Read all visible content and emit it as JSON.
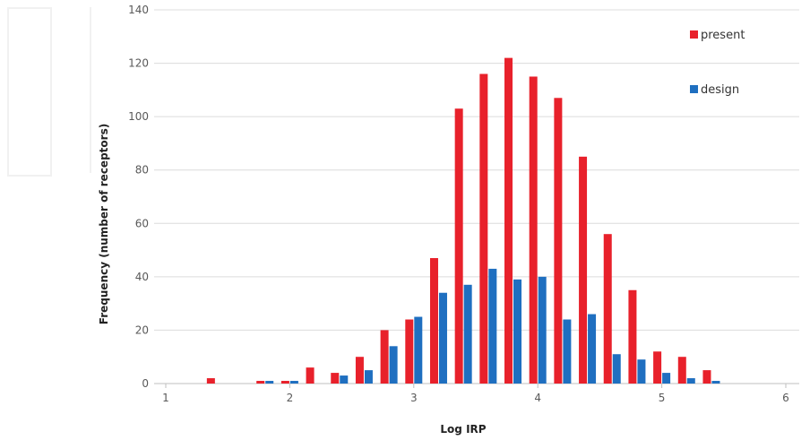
{
  "chart_data": {
    "type": "bar",
    "title": "",
    "xlabel": "Log IRP",
    "ylabel": "Frequency (number of receptors)",
    "ylim": [
      0,
      140
    ],
    "yticks": [
      0,
      20,
      40,
      60,
      80,
      100,
      120,
      140
    ],
    "xlim": [
      1,
      6
    ],
    "xticks": [
      1,
      2,
      3,
      4,
      5,
      6
    ],
    "grid": "horizontal",
    "legend_position": "top-right",
    "x": [
      1.4,
      1.8,
      2.0,
      2.2,
      2.4,
      2.6,
      2.8,
      3.0,
      3.2,
      3.4,
      3.6,
      3.8,
      4.0,
      4.2,
      4.4,
      4.6,
      4.8,
      5.0,
      5.2,
      5.4
    ],
    "series": [
      {
        "name": "present",
        "color": "#e8212b",
        "values": [
          2,
          1,
          1,
          6,
          4,
          10,
          20,
          24,
          47,
          103,
          116,
          122,
          115,
          107,
          85,
          56,
          35,
          12,
          10,
          5
        ]
      },
      {
        "name": "design",
        "color": "#1f6fc0",
        "values": [
          0,
          1,
          1,
          0,
          3,
          5,
          14,
          25,
          34,
          37,
          43,
          39,
          40,
          24,
          26,
          11,
          9,
          4,
          2,
          1
        ]
      }
    ]
  }
}
